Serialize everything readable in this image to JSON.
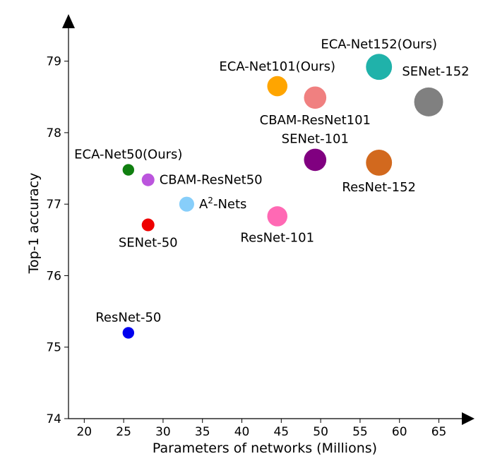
{
  "chart_data": {
    "type": "scatter",
    "title": "",
    "xlabel": "Parameters of networks (Millions)",
    "ylabel": "Top-1 accuracy",
    "xlim": [
      18,
      68
    ],
    "ylim": [
      74,
      79.5
    ],
    "xticks": [
      20,
      25,
      30,
      35,
      40,
      45,
      50,
      55,
      60,
      65
    ],
    "yticks": [
      74,
      75,
      76,
      77,
      78,
      79
    ],
    "grid": false,
    "points": [
      {
        "name": "ResNet-50",
        "x": 25.6,
        "y": 75.2,
        "color": "#0000ee",
        "label_pos": "above"
      },
      {
        "name": "SENet-50",
        "x": 28.1,
        "y": 76.71,
        "color": "#ee0000",
        "label_pos": "below"
      },
      {
        "name": "CBAM-ResNet50",
        "x": 28.1,
        "y": 77.34,
        "color": "#bb55dd",
        "label_pos": "right"
      },
      {
        "name": "ECA-Net50(Ours)",
        "x": 25.6,
        "y": 77.48,
        "color": "#107f10",
        "label_pos": "above"
      },
      {
        "name": "Nets",
        "x": 33.0,
        "y": 77.0,
        "color": "#87cefa",
        "label_pos": "right",
        "label_prefix": "A",
        "label_sup": "2",
        "label_joiner": "-"
      },
      {
        "name": "ResNet-101",
        "x": 44.5,
        "y": 76.83,
        "color": "#ff69b4",
        "label_pos": "below"
      },
      {
        "name": "SENet-101",
        "x": 49.3,
        "y": 77.62,
        "color": "#800080",
        "label_pos": "above"
      },
      {
        "name": "ResNet-152",
        "x": 57.4,
        "y": 77.58,
        "color": "#d2691e",
        "label_pos": "below"
      },
      {
        "name": "ECA-Net101(Ours)",
        "x": 44.5,
        "y": 78.65,
        "color": "#ffa500",
        "label_pos": "above"
      },
      {
        "name": "CBAM-ResNet101",
        "x": 49.3,
        "y": 78.49,
        "color": "#f08080",
        "label_pos": "below"
      },
      {
        "name": "ECA-Net152(Ours)",
        "x": 57.4,
        "y": 78.92,
        "color": "#20b2aa",
        "label_pos": "above"
      },
      {
        "name": "SENet-152",
        "x": 63.7,
        "y": 78.43,
        "color": "#808080",
        "label_pos": "above-right"
      }
    ]
  }
}
